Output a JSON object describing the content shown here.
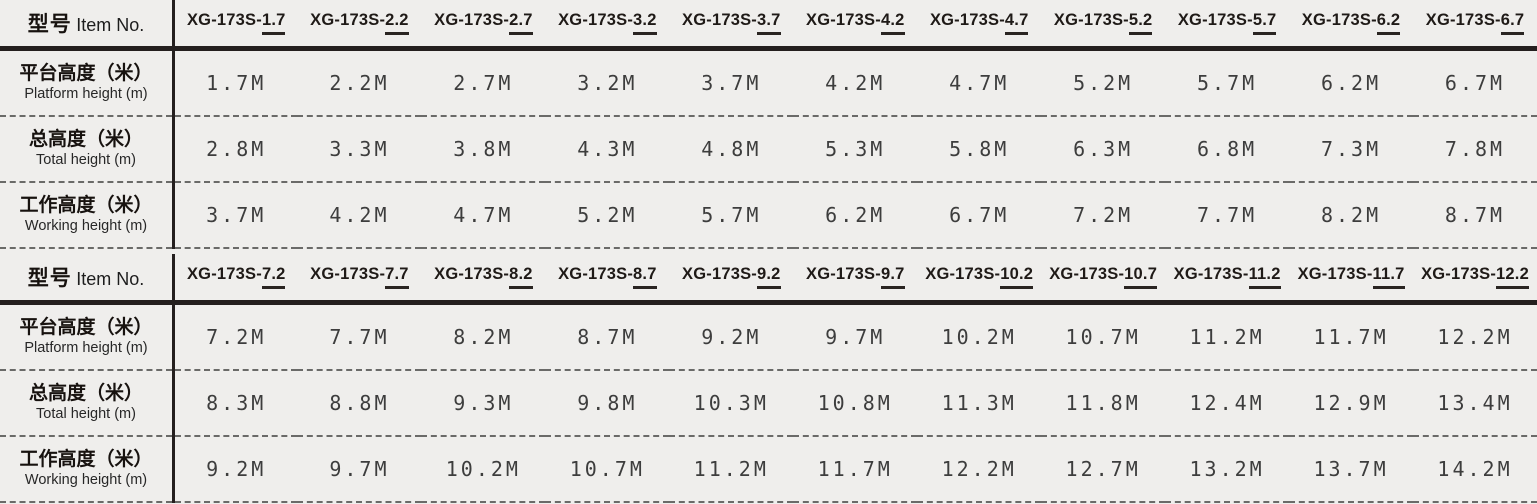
{
  "colors": {
    "background": "#efeeec",
    "line": "#241f1e",
    "dash": "#6a6a68",
    "data_text": "#3d3d3d"
  },
  "tables": [
    {
      "header": {
        "cn": "型号",
        "en": "Item No."
      },
      "items": [
        {
          "prefix": "XG-173S-",
          "num": "1.7"
        },
        {
          "prefix": "XG-173S-",
          "num": "2.2"
        },
        {
          "prefix": "XG-173S-",
          "num": "2.7"
        },
        {
          "prefix": "XG-173S-",
          "num": "3.2"
        },
        {
          "prefix": "XG-173S-",
          "num": "3.7"
        },
        {
          "prefix": "XG-173S-",
          "num": "4.2"
        },
        {
          "prefix": "XG-173S-",
          "num": "4.7"
        },
        {
          "prefix": "XG-173S-",
          "num": "5.2"
        },
        {
          "prefix": "XG-173S-",
          "num": "5.7"
        },
        {
          "prefix": "XG-173S-",
          "num": "6.2"
        },
        {
          "prefix": "XG-173S-",
          "num": "6.7"
        }
      ],
      "row_labels": [
        {
          "cn": "平台高度（米）",
          "en": "Platform height (m)"
        },
        {
          "cn": "总高度（米）",
          "en": "Total height (m)"
        },
        {
          "cn": "工作高度（米）",
          "en": "Working height (m)"
        }
      ],
      "rows": [
        [
          "1.7M",
          "2.2M",
          "2.7M",
          "3.2M",
          "3.7M",
          "4.2M",
          "4.7M",
          "5.2M",
          "5.7M",
          "6.2M",
          "6.7M"
        ],
        [
          "2.8M",
          "3.3M",
          "3.8M",
          "4.3M",
          "4.8M",
          "5.3M",
          "5.8M",
          "6.3M",
          "6.8M",
          "7.3M",
          "7.8M"
        ],
        [
          "3.7M",
          "4.2M",
          "4.7M",
          "5.2M",
          "5.7M",
          "6.2M",
          "6.7M",
          "7.2M",
          "7.7M",
          "8.2M",
          "8.7M"
        ]
      ]
    },
    {
      "header": {
        "cn": "型号",
        "en": "Item No."
      },
      "items": [
        {
          "prefix": "XG-173S-",
          "num": "7.2"
        },
        {
          "prefix": "XG-173S-",
          "num": "7.7"
        },
        {
          "prefix": "XG-173S-",
          "num": "8.2"
        },
        {
          "prefix": "XG-173S-",
          "num": "8.7"
        },
        {
          "prefix": "XG-173S-",
          "num": "9.2"
        },
        {
          "prefix": "XG-173S-",
          "num": "9.7"
        },
        {
          "prefix": "XG-173S-",
          "num": "10.2"
        },
        {
          "prefix": "XG-173S-",
          "num": "10.7"
        },
        {
          "prefix": "XG-173S-",
          "num": "11.2"
        },
        {
          "prefix": "XG-173S-",
          "num": "11.7"
        },
        {
          "prefix": "XG-173S-",
          "num": "12.2"
        }
      ],
      "row_labels": [
        {
          "cn": "平台高度（米）",
          "en": "Platform height (m)"
        },
        {
          "cn": "总高度（米）",
          "en": "Total height (m)"
        },
        {
          "cn": "工作高度（米）",
          "en": "Working height (m)"
        }
      ],
      "rows": [
        [
          "7.2M",
          "7.7M",
          "8.2M",
          "8.7M",
          "9.2M",
          "9.7M",
          "10.2M",
          "10.7M",
          "11.2M",
          "11.7M",
          "12.2M"
        ],
        [
          "8.3M",
          "8.8M",
          "9.3M",
          "9.8M",
          "10.3M",
          "10.8M",
          "11.3M",
          "11.8M",
          "12.4M",
          "12.9M",
          "13.4M"
        ],
        [
          "9.2M",
          "9.7M",
          "10.2M",
          "10.7M",
          "11.2M",
          "11.7M",
          "12.2M",
          "12.7M",
          "13.2M",
          "13.7M",
          "14.2M"
        ]
      ]
    }
  ]
}
